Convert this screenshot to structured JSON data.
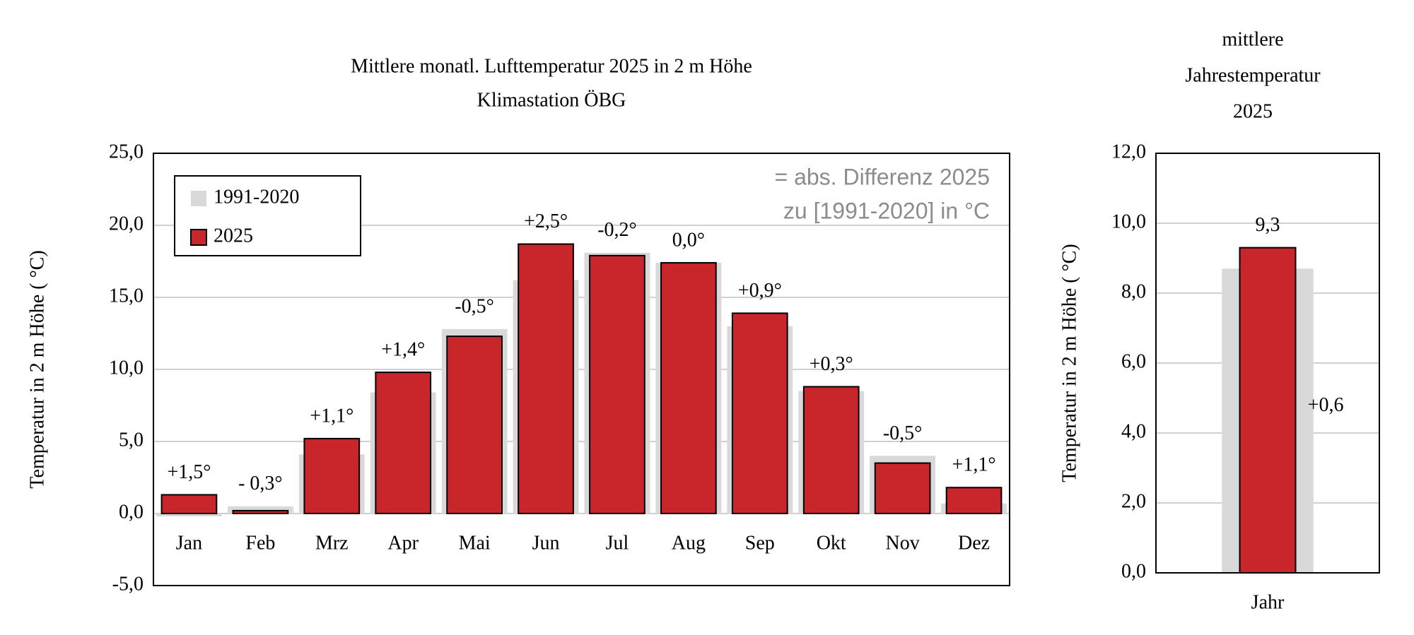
{
  "chart_data": [
    {
      "type": "bar",
      "title": "Mittlere monatl. Lufttemperatur  2025 in 2 m Höhe",
      "subtitle": "Klimastation ÖBG",
      "ylabel": "Temperatur in 2 m Höhe ( °C)",
      "note_lines": [
        "= abs. Differenz 2025",
        "zu [1991-2020] in °C"
      ],
      "categories": [
        "Jan",
        "Feb",
        "Mrz",
        "Apr",
        "Mai",
        "Jun",
        "Jul",
        "Aug",
        "Sep",
        "Okt",
        "Nov",
        "Dez"
      ],
      "series": [
        {
          "name": "1991-2020",
          "color": "#d9d9d9",
          "values": [
            -0.2,
            0.5,
            4.1,
            8.4,
            12.8,
            16.2,
            18.1,
            17.4,
            13.0,
            8.5,
            4.0,
            0.7
          ]
        },
        {
          "name": "2025",
          "color": "#c8262b",
          "values": [
            1.3,
            0.2,
            5.2,
            9.8,
            12.3,
            18.7,
            17.9,
            17.4,
            13.9,
            8.8,
            3.5,
            1.8
          ]
        }
      ],
      "diff_labels": [
        "+1,5°",
        "- 0,3°",
        "+1,1°",
        "+1,4°",
        "-0,5°",
        "+2,5°",
        "-0,2°",
        "0,0°",
        "+0,9°",
        "+0,3°",
        "-0,5°",
        "+1,1°"
      ],
      "ylim": [
        -5,
        25
      ],
      "yticks": [
        {
          "value": -5,
          "label": "-5,0"
        },
        {
          "value": 0,
          "label": "0,0"
        },
        {
          "value": 5,
          "label": "5,0"
        },
        {
          "value": 10,
          "label": "10,0"
        },
        {
          "value": 15,
          "label": "15,0"
        },
        {
          "value": 20,
          "label": "20,0"
        },
        {
          "value": 25,
          "label": "25,0"
        }
      ],
      "grid": true,
      "legend": "upper left"
    },
    {
      "type": "bar",
      "title_lines": [
        "mittlere",
        "Jahrestemperatur",
        "2025"
      ],
      "ylabel": "Temperatur in 2 m Höhe ( °C)",
      "categories": [
        "Jahr"
      ],
      "series": [
        {
          "color": "#d9d9d9",
          "values": [
            8.7
          ]
        },
        {
          "color": "#c8262b",
          "values": [
            9.3
          ],
          "value_labels": [
            "9,3"
          ]
        }
      ],
      "diff_labels": [
        "+0,6"
      ],
      "ylim": [
        0,
        12
      ],
      "yticks": [
        {
          "value": 0,
          "label": "0,0"
        },
        {
          "value": 2,
          "label": "2,0"
        },
        {
          "value": 4,
          "label": "4,0"
        },
        {
          "value": 6,
          "label": "6,0"
        },
        {
          "value": 8,
          "label": "8,0"
        },
        {
          "value": 10,
          "label": "10,0"
        },
        {
          "value": 12,
          "label": "12,0"
        }
      ],
      "grid": true
    }
  ]
}
